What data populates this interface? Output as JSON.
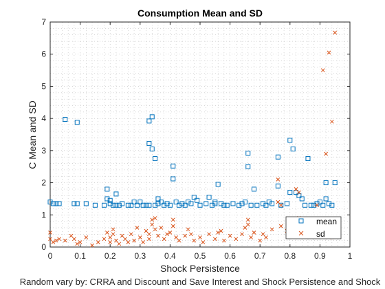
{
  "chart_data": {
    "type": "scatter",
    "title": "Consumption Mean and SD",
    "xlabel": "Shock Persistence",
    "ylabel": "C Mean and SD",
    "subtitle": "Random vary by: CRRA and Discount and Save Interest and Shock Persistence and Shock",
    "xlim": [
      0,
      1
    ],
    "ylim": [
      0,
      7
    ],
    "xticks": [
      0,
      0.1,
      0.2,
      0.3,
      0.4,
      0.5,
      0.6,
      0.7,
      0.8,
      0.9,
      1
    ],
    "yticks": [
      0,
      1,
      2,
      3,
      4,
      5,
      6,
      7
    ],
    "grid": "minor-dotted",
    "legend_placement": "bottom-right",
    "series": [
      {
        "name": "mean",
        "marker": "square",
        "color": "#0072BD",
        "points": [
          [
            0.0,
            1.4
          ],
          [
            0.01,
            1.35
          ],
          [
            0.02,
            1.35
          ],
          [
            0.03,
            1.35
          ],
          [
            0.05,
            3.97
          ],
          [
            0.08,
            1.35
          ],
          [
            0.09,
            3.88
          ],
          [
            0.09,
            1.35
          ],
          [
            0.12,
            1.35
          ],
          [
            0.15,
            1.3
          ],
          [
            0.18,
            1.3
          ],
          [
            0.19,
            1.8
          ],
          [
            0.19,
            1.5
          ],
          [
            0.2,
            1.45
          ],
          [
            0.2,
            1.35
          ],
          [
            0.21,
            1.3
          ],
          [
            0.22,
            1.65
          ],
          [
            0.22,
            1.3
          ],
          [
            0.23,
            1.3
          ],
          [
            0.24,
            1.35
          ],
          [
            0.26,
            1.3
          ],
          [
            0.27,
            1.3
          ],
          [
            0.28,
            1.4
          ],
          [
            0.29,
            1.3
          ],
          [
            0.3,
            1.4
          ],
          [
            0.31,
            1.3
          ],
          [
            0.32,
            1.3
          ],
          [
            0.33,
            3.92
          ],
          [
            0.33,
            3.22
          ],
          [
            0.33,
            1.3
          ],
          [
            0.34,
            4.05
          ],
          [
            0.34,
            3.05
          ],
          [
            0.35,
            2.75
          ],
          [
            0.35,
            1.3
          ],
          [
            0.36,
            1.35
          ],
          [
            0.36,
            1.5
          ],
          [
            0.37,
            1.4
          ],
          [
            0.38,
            1.3
          ],
          [
            0.39,
            1.35
          ],
          [
            0.4,
            1.3
          ],
          [
            0.41,
            2.52
          ],
          [
            0.41,
            2.12
          ],
          [
            0.42,
            1.4
          ],
          [
            0.43,
            1.3
          ],
          [
            0.44,
            1.35
          ],
          [
            0.45,
            1.3
          ],
          [
            0.46,
            1.4
          ],
          [
            0.47,
            1.35
          ],
          [
            0.48,
            1.55
          ],
          [
            0.49,
            1.45
          ],
          [
            0.5,
            1.3
          ],
          [
            0.52,
            1.35
          ],
          [
            0.53,
            1.55
          ],
          [
            0.54,
            1.3
          ],
          [
            0.55,
            1.4
          ],
          [
            0.55,
            1.35
          ],
          [
            0.56,
            1.95
          ],
          [
            0.57,
            1.35
          ],
          [
            0.58,
            1.3
          ],
          [
            0.59,
            1.3
          ],
          [
            0.61,
            1.35
          ],
          [
            0.63,
            1.3
          ],
          [
            0.64,
            1.35
          ],
          [
            0.65,
            1.4
          ],
          [
            0.66,
            2.92
          ],
          [
            0.66,
            2.5
          ],
          [
            0.67,
            1.3
          ],
          [
            0.68,
            1.8
          ],
          [
            0.69,
            1.3
          ],
          [
            0.71,
            1.35
          ],
          [
            0.72,
            1.3
          ],
          [
            0.73,
            1.4
          ],
          [
            0.74,
            1.35
          ],
          [
            0.76,
            2.8
          ],
          [
            0.76,
            1.9
          ],
          [
            0.77,
            1.3
          ],
          [
            0.79,
            1.35
          ],
          [
            0.8,
            3.32
          ],
          [
            0.8,
            1.7
          ],
          [
            0.81,
            3.05
          ],
          [
            0.82,
            1.7
          ],
          [
            0.83,
            1.6
          ],
          [
            0.84,
            1.5
          ],
          [
            0.85,
            1.3
          ],
          [
            0.86,
            2.75
          ],
          [
            0.87,
            1.3
          ],
          [
            0.88,
            1.3
          ],
          [
            0.89,
            1.35
          ],
          [
            0.9,
            1.4
          ],
          [
            0.91,
            1.3
          ],
          [
            0.92,
            2.0
          ],
          [
            0.92,
            1.5
          ],
          [
            0.93,
            1.35
          ],
          [
            0.94,
            1.3
          ],
          [
            0.95,
            2.0
          ]
        ]
      },
      {
        "name": "sd",
        "marker": "x",
        "color": "#D95319",
        "points": [
          [
            0.0,
            0.45
          ],
          [
            0.0,
            0.25
          ],
          [
            0.01,
            0.15
          ],
          [
            0.02,
            0.2
          ],
          [
            0.03,
            0.25
          ],
          [
            0.05,
            0.2
          ],
          [
            0.07,
            0.35
          ],
          [
            0.08,
            0.25
          ],
          [
            0.09,
            0.1
          ],
          [
            0.1,
            0.15
          ],
          [
            0.12,
            0.3
          ],
          [
            0.14,
            0.05
          ],
          [
            0.16,
            0.15
          ],
          [
            0.18,
            0.25
          ],
          [
            0.19,
            0.45
          ],
          [
            0.2,
            0.3
          ],
          [
            0.2,
            0.15
          ],
          [
            0.21,
            0.55
          ],
          [
            0.21,
            0.4
          ],
          [
            0.22,
            0.2
          ],
          [
            0.23,
            0.1
          ],
          [
            0.24,
            0.35
          ],
          [
            0.25,
            0.25
          ],
          [
            0.26,
            0.15
          ],
          [
            0.27,
            0.4
          ],
          [
            0.28,
            0.2
          ],
          [
            0.29,
            0.6
          ],
          [
            0.3,
            0.3
          ],
          [
            0.31,
            0.15
          ],
          [
            0.32,
            0.5
          ],
          [
            0.33,
            0.4
          ],
          [
            0.33,
            0.25
          ],
          [
            0.34,
            0.85
          ],
          [
            0.34,
            0.7
          ],
          [
            0.35,
            0.9
          ],
          [
            0.35,
            0.55
          ],
          [
            0.36,
            0.35
          ],
          [
            0.37,
            0.6
          ],
          [
            0.38,
            0.25
          ],
          [
            0.39,
            0.4
          ],
          [
            0.4,
            0.45
          ],
          [
            0.41,
            0.85
          ],
          [
            0.41,
            0.65
          ],
          [
            0.42,
            0.3
          ],
          [
            0.43,
            0.2
          ],
          [
            0.45,
            0.35
          ],
          [
            0.46,
            0.55
          ],
          [
            0.47,
            0.4
          ],
          [
            0.48,
            0.2
          ],
          [
            0.5,
            0.3
          ],
          [
            0.51,
            0.15
          ],
          [
            0.53,
            0.4
          ],
          [
            0.55,
            0.25
          ],
          [
            0.56,
            0.45
          ],
          [
            0.57,
            0.5
          ],
          [
            0.58,
            0.2
          ],
          [
            0.6,
            0.35
          ],
          [
            0.62,
            0.25
          ],
          [
            0.64,
            0.4
          ],
          [
            0.65,
            0.6
          ],
          [
            0.66,
            0.85
          ],
          [
            0.66,
            0.7
          ],
          [
            0.67,
            0.3
          ],
          [
            0.68,
            0.45
          ],
          [
            0.7,
            0.2
          ],
          [
            0.71,
            0.4
          ],
          [
            0.72,
            0.3
          ],
          [
            0.74,
            0.55
          ],
          [
            0.76,
            2.1
          ],
          [
            0.76,
            1.4
          ],
          [
            0.77,
            1.3
          ],
          [
            0.77,
            0.65
          ],
          [
            0.79,
            0.5
          ],
          [
            0.8,
            0.8
          ],
          [
            0.81,
            0.4
          ],
          [
            0.82,
            1.8
          ],
          [
            0.83,
            1.7
          ],
          [
            0.83,
            0.9
          ],
          [
            0.84,
            0.4
          ],
          [
            0.85,
            0.55
          ],
          [
            0.86,
            0.35
          ],
          [
            0.87,
            0.45
          ],
          [
            0.88,
            0.8
          ],
          [
            0.89,
            1.3
          ],
          [
            0.9,
            0.6
          ],
          [
            0.91,
            5.5
          ],
          [
            0.92,
            2.9
          ],
          [
            0.93,
            6.05
          ],
          [
            0.94,
            3.9
          ],
          [
            0.95,
            6.67
          ],
          [
            0.93,
            0.5
          ],
          [
            0.94,
            0.3
          ]
        ]
      }
    ]
  }
}
